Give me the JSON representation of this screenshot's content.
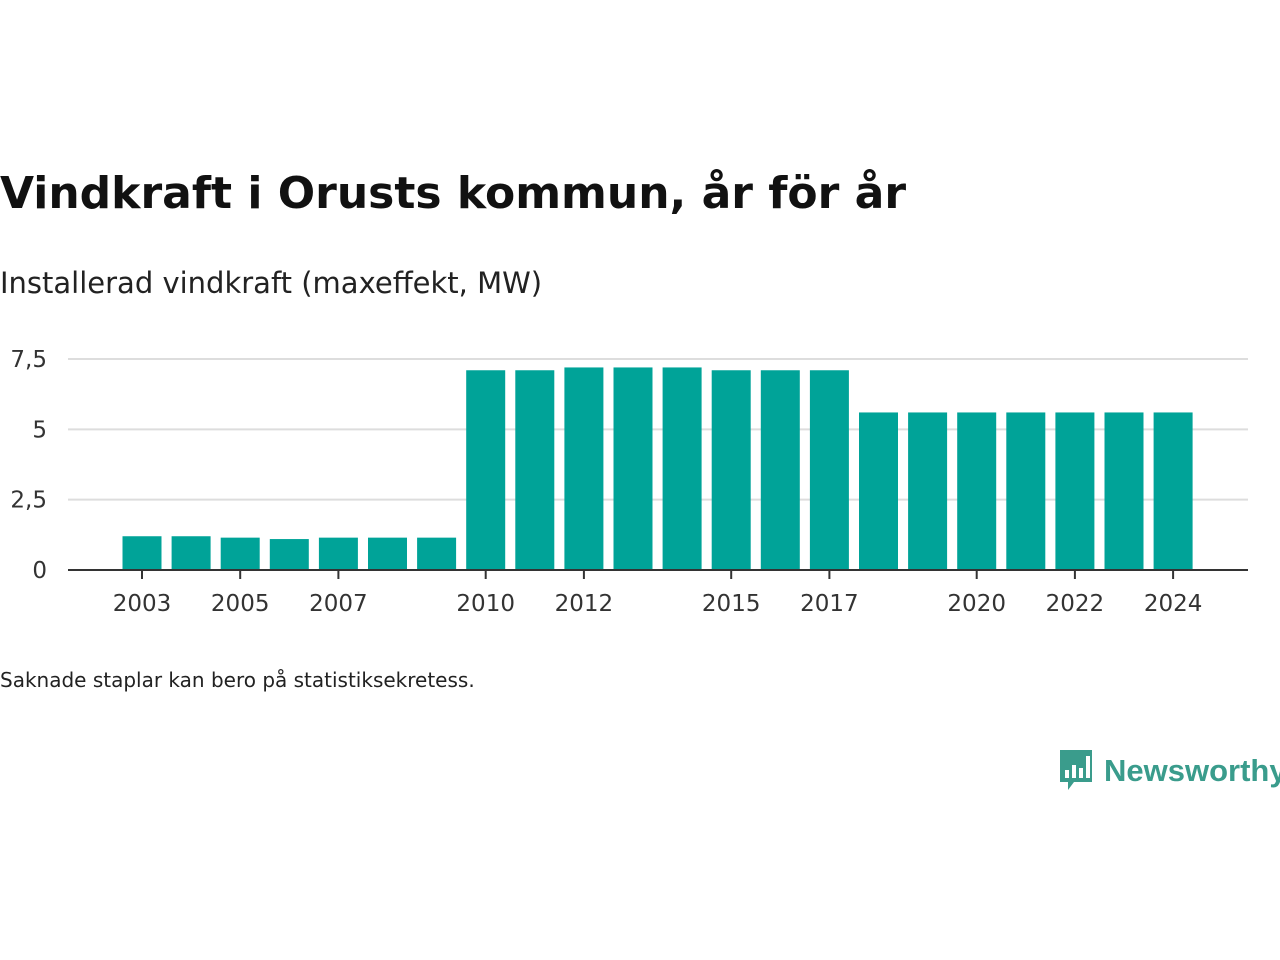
{
  "title": "Vindkraft i Orusts kommun, år för år",
  "subtitle": "Installerad vindkraft (maxeffekt, MW)",
  "note": "Saknade staplar kan bero på statistiksekretess.",
  "logo": {
    "text": "Newsworthy",
    "icon": "newsworthy-chart-bubble-icon",
    "color": "#3a9c8c"
  },
  "chart_data": {
    "type": "bar",
    "title": "Vindkraft i Orusts kommun, år för år",
    "ylabel": "Installerad vindkraft (maxeffekt, MW)",
    "xlabel": "",
    "categories": [
      2003,
      2004,
      2005,
      2006,
      2007,
      2008,
      2009,
      2010,
      2011,
      2012,
      2013,
      2014,
      2015,
      2016,
      2017,
      2018,
      2019,
      2020,
      2021,
      2022,
      2023,
      2024
    ],
    "values": [
      1.2,
      1.2,
      1.15,
      1.1,
      1.15,
      1.15,
      1.15,
      7.1,
      7.1,
      7.2,
      7.2,
      7.2,
      7.1,
      7.1,
      7.1,
      5.6,
      5.6,
      5.6,
      5.6,
      5.6,
      5.6,
      5.6
    ],
    "ylim": [
      0,
      7.5
    ],
    "yticks": [
      0,
      2.5,
      5,
      7.5
    ],
    "ytick_labels": [
      "0",
      "2,5",
      "5",
      "7,5"
    ],
    "xticks": [
      2003,
      2005,
      2007,
      2010,
      2012,
      2015,
      2017,
      2020,
      2022,
      2024
    ],
    "xtick_labels": [
      "2003",
      "2005",
      "2007",
      "2010",
      "2012",
      "2015",
      "2017",
      "2020",
      "2022",
      "2024"
    ],
    "bar_color": "#00a398",
    "grid": true,
    "legend": "none"
  }
}
